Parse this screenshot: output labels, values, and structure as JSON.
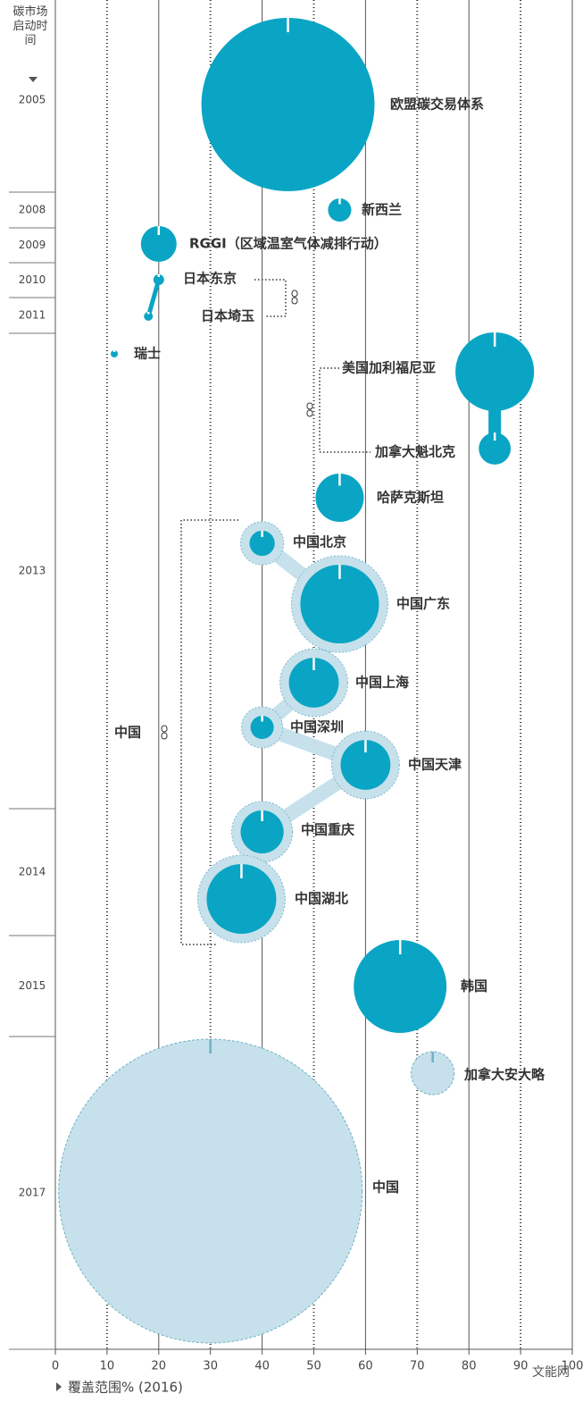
{
  "chart_data": {
    "type": "bubble",
    "y_axis_title": "碳市场启动时间",
    "x_label": "覆盖范围% (2016)",
    "xlim": [
      0,
      100
    ],
    "xticks": [
      0,
      10,
      20,
      30,
      40,
      50,
      60,
      70,
      80,
      90,
      100
    ],
    "grid": true,
    "categories": [
      "2005",
      "2008",
      "2009",
      "2010",
      "2011",
      "2013",
      "2014",
      "2015",
      "2017"
    ],
    "points": [
      {
        "name": "欧盟碳交易体系",
        "x": 45,
        "size": 94,
        "color": "#0aa5c4"
      },
      {
        "name": "新西兰",
        "x": 55,
        "size": 1.7,
        "color": "#0aa5c4"
      },
      {
        "name": "RGGI（区域温室气体减排行动）",
        "x": 20,
        "size": 4,
        "color": "#0aa5c4"
      },
      {
        "name": "日本东京",
        "x": 20,
        "size": 0.36,
        "color": "#0aa5c4"
      },
      {
        "name": "日本埼玉",
        "x": 18,
        "size": 0.25,
        "color": "#0aa5c4"
      },
      {
        "name": "瑞士",
        "x": 11.4,
        "size": 0.16,
        "color": "#0aa5c4"
      },
      {
        "name": "美国加利福尼亚",
        "x": 85,
        "size": 19.4,
        "color": "#0aa5c4"
      },
      {
        "name": "加拿大魁北克",
        "x": 85,
        "size": 3.2,
        "color": "#0aa5c4"
      },
      {
        "name": "哈萨克斯坦",
        "x": 55,
        "size": 7.3,
        "color": "#0aa5c4"
      },
      {
        "name": "中国北京",
        "x": 40,
        "size": 2,
        "color": "#0aa5c4"
      },
      {
        "name": "中国广东",
        "x": 55,
        "size": 19.4,
        "color": "#0aa5c4"
      },
      {
        "name": "中国上海",
        "x": 50,
        "size": 7.8,
        "color": "#0aa5c4"
      },
      {
        "name": "中国深圳",
        "x": 40,
        "size": 1.7,
        "color": "#0aa5c4"
      },
      {
        "name": "中国天津",
        "x": 60,
        "size": 7.8,
        "color": "#0aa5c4"
      },
      {
        "name": "中国重庆",
        "x": 40,
        "size": 5.8,
        "color": "#0aa5c4"
      },
      {
        "name": "中国湖北",
        "x": 36,
        "size": 15.2,
        "color": "#0aa5c4"
      },
      {
        "name": "韩国",
        "x": 66.7,
        "size": 27,
        "color": "#0aa5c4"
      },
      {
        "name": "加拿大安大略",
        "x": 73,
        "size": 5.8,
        "color": "#c6e1eb"
      },
      {
        "name": "中国",
        "x": 30,
        "size": 289,
        "color": "#c6e1eb"
      }
    ],
    "group_label": "中国",
    "watermark": "文能网"
  }
}
